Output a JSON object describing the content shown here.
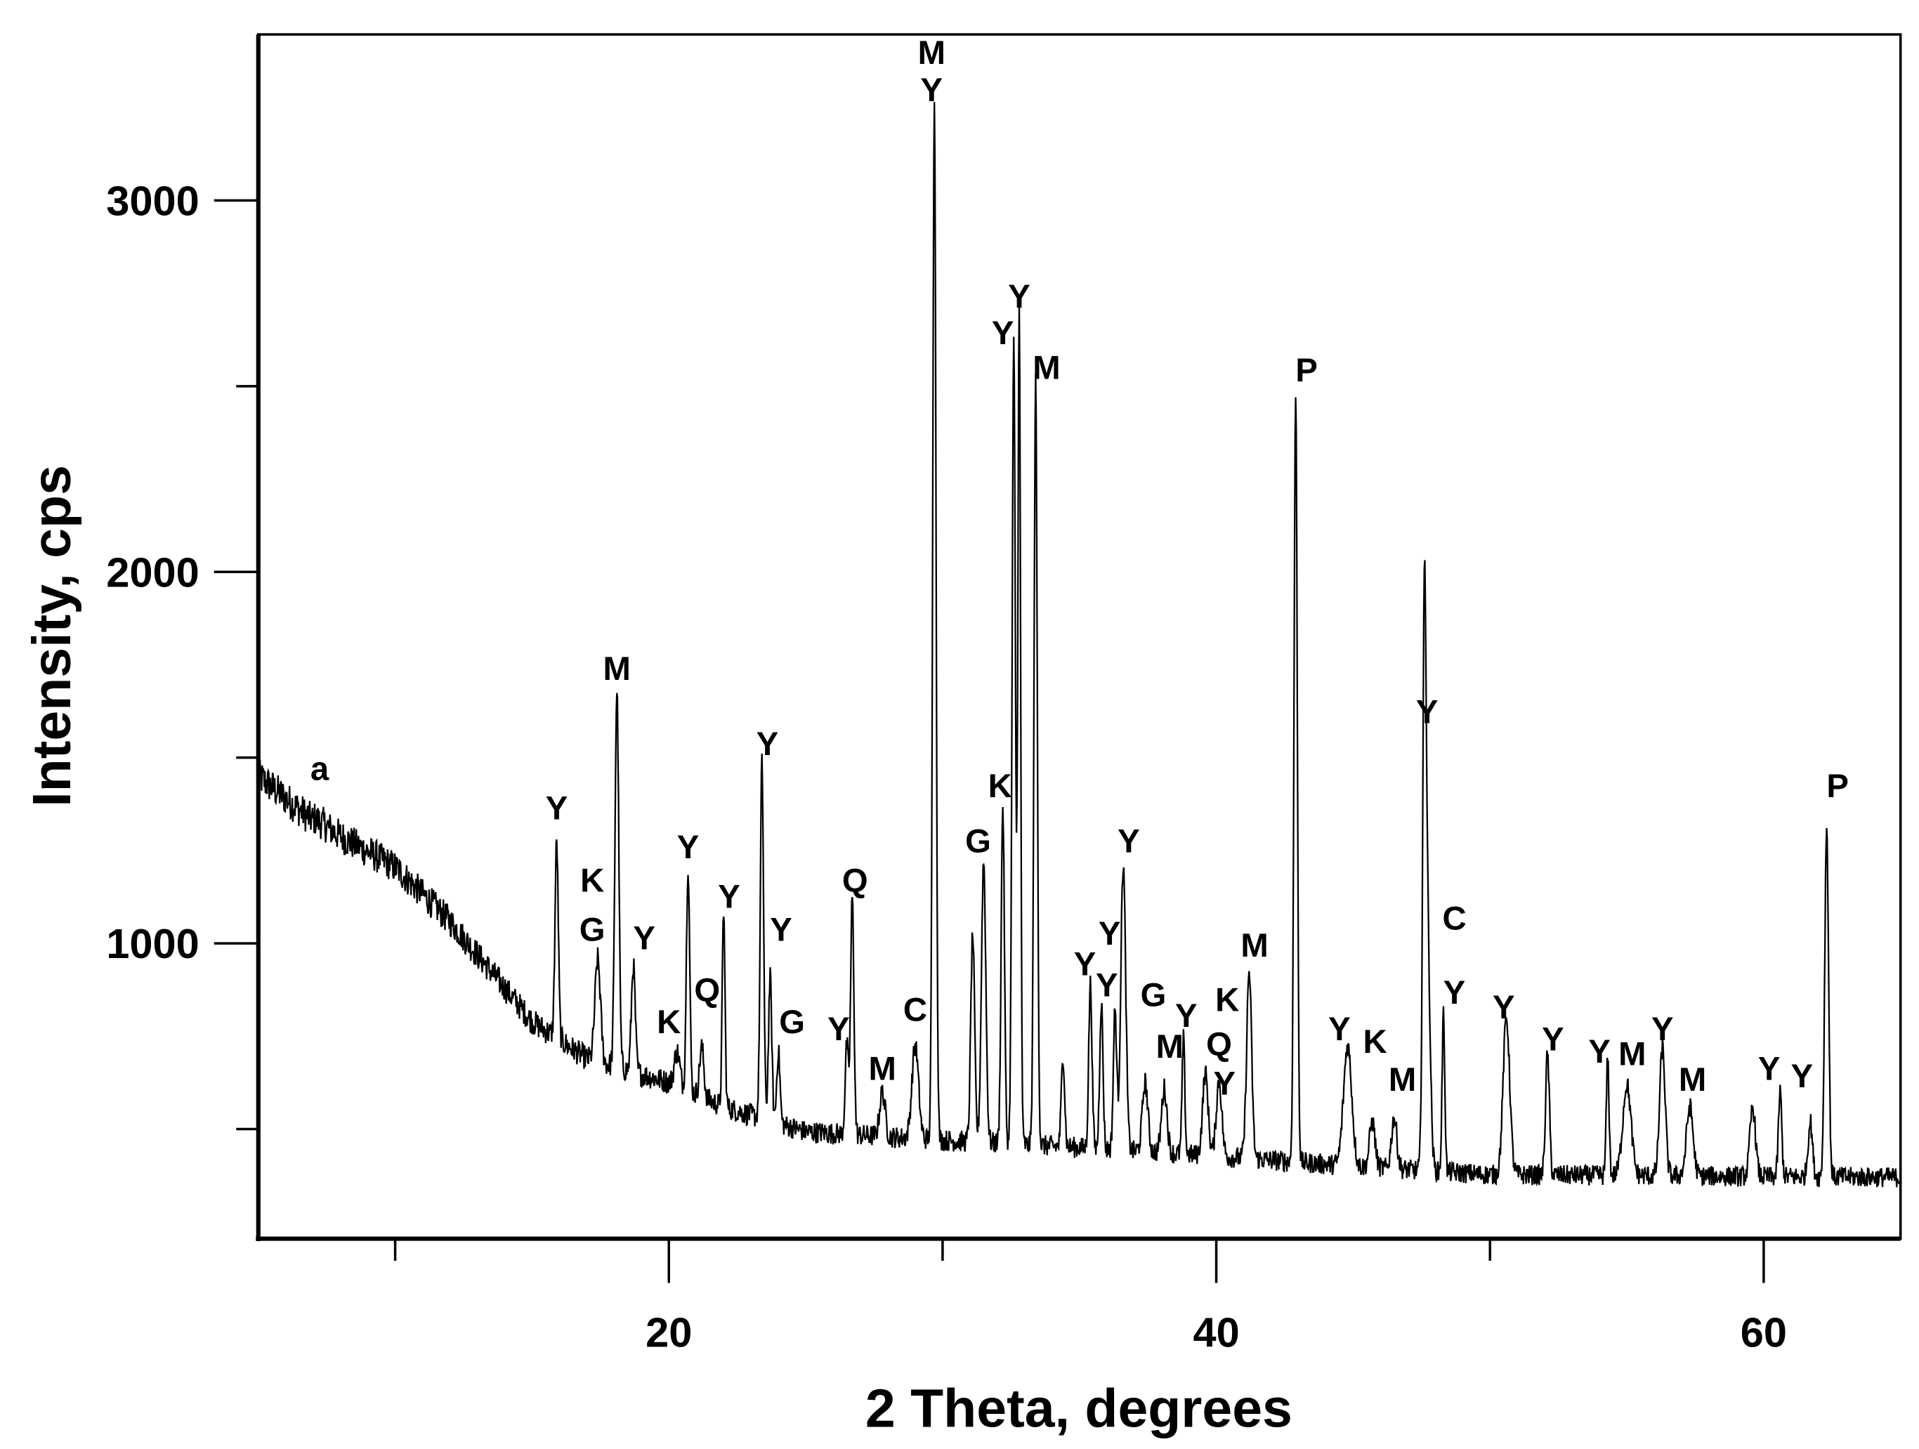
{
  "chart_data": {
    "type": "line",
    "xlabel": "2 Theta, degrees",
    "ylabel": "Intensity, cps",
    "xlim": [
      5,
      65
    ],
    "ylim": [
      205,
      3447
    ],
    "x_ticks_major": [
      20,
      40,
      60
    ],
    "x_ticks_minor": [
      10,
      30,
      50
    ],
    "y_ticks_major": [
      1000,
      2000,
      3000
    ],
    "y_ticks_minor": [
      500,
      1500,
      2500
    ],
    "grid": false,
    "line_color": "#000000",
    "background": [
      [
        5,
        1450
      ],
      [
        7,
        1330
      ],
      [
        10,
        1205
      ],
      [
        12,
        1060
      ],
      [
        15,
        790
      ],
      [
        17,
        690
      ],
      [
        20,
        626
      ],
      [
        22,
        560
      ],
      [
        25,
        493
      ],
      [
        30,
        470
      ],
      [
        35,
        450
      ],
      [
        40,
        427
      ],
      [
        45,
        400
      ],
      [
        50,
        377
      ],
      [
        55,
        375
      ],
      [
        60,
        372
      ],
      [
        65,
        370
      ]
    ],
    "peaks": [
      [
        7.2,
        1330,
        0.35
      ],
      [
        15.9,
        1272,
        0.06
      ],
      [
        17.4,
        957,
        0.1
      ],
      [
        18.1,
        1679,
        0.07
      ],
      [
        18.7,
        940,
        0.07
      ],
      [
        20.3,
        709,
        0.1
      ],
      [
        20.7,
        1212,
        0.06
      ],
      [
        21.2,
        720,
        0.08
      ],
      [
        22.0,
        1089,
        0.05
      ],
      [
        23.4,
        1487,
        0.06
      ],
      [
        23.7,
        907,
        0.06
      ],
      [
        24.0,
        709,
        0.06
      ],
      [
        26.5,
        725,
        0.06
      ],
      [
        26.7,
        1123,
        0.06
      ],
      [
        27.8,
        600,
        0.1
      ],
      [
        29.0,
        725,
        0.12
      ],
      [
        29.7,
        3291,
        0.06
      ],
      [
        31.1,
        1023,
        0.07
      ],
      [
        31.5,
        1222,
        0.08
      ],
      [
        32.2,
        1371,
        0.06
      ],
      [
        32.6,
        2613,
        0.06
      ],
      [
        32.8,
        2695,
        0.05
      ],
      [
        33.4,
        2507,
        0.06
      ],
      [
        34.4,
        700,
        0.06
      ],
      [
        35.4,
        891,
        0.06
      ],
      [
        35.8,
        841,
        0.06
      ],
      [
        36.3,
        820,
        0.06
      ],
      [
        36.6,
        1212,
        0.09
      ],
      [
        37.4,
        626,
        0.1
      ],
      [
        38.1,
        610,
        0.1
      ],
      [
        38.8,
        742,
        0.05
      ],
      [
        39.6,
        650,
        0.1
      ],
      [
        40.1,
        630,
        0.1
      ],
      [
        41.2,
        924,
        0.09
      ],
      [
        42.9,
        2480,
        0.06
      ],
      [
        44.8,
        725,
        0.15
      ],
      [
        45.7,
        520,
        0.1
      ],
      [
        46.5,
        530,
        0.1
      ],
      [
        47.6,
        1579,
        0.06
      ],
      [
        47.7,
        1089,
        0.1
      ],
      [
        48.3,
        808,
        0.05
      ],
      [
        50.6,
        800,
        0.12
      ],
      [
        52.1,
        700,
        0.07
      ],
      [
        54.3,
        690,
        0.05
      ],
      [
        55.0,
        620,
        0.15
      ],
      [
        56.3,
        720,
        0.1
      ],
      [
        57.3,
        560,
        0.12
      ],
      [
        59.6,
        560,
        0.1
      ],
      [
        60.6,
        600,
        0.06
      ],
      [
        61.7,
        520,
        0.08
      ],
      [
        62.3,
        1315,
        0.07
      ]
    ],
    "annotations": [
      {
        "text": "a",
        "x": 7.24,
        "y": 1473
      },
      {
        "text": "Y",
        "x": 15.9,
        "y": 1367
      },
      {
        "text": "K",
        "x": 17.2,
        "y": 1172
      },
      {
        "text": "G",
        "x": 17.2,
        "y": 1040
      },
      {
        "text": "M",
        "x": 18.1,
        "y": 1742
      },
      {
        "text": "Y",
        "x": 19.1,
        "y": 1017
      },
      {
        "text": "K",
        "x": 20.0,
        "y": 791
      },
      {
        "text": "Y",
        "x": 20.7,
        "y": 1262
      },
      {
        "text": "Q",
        "x": 21.4,
        "y": 877
      },
      {
        "text": "Y",
        "x": 22.2,
        "y": 1129
      },
      {
        "text": "Y",
        "x": 23.6,
        "y": 1540
      },
      {
        "text": "Y",
        "x": 24.1,
        "y": 1040
      },
      {
        "text": "G",
        "x": 24.5,
        "y": 791
      },
      {
        "text": "Y",
        "x": 26.2,
        "y": 772
      },
      {
        "text": "Q",
        "x": 26.8,
        "y": 1172
      },
      {
        "text": "M",
        "x": 27.8,
        "y": 666
      },
      {
        "text": "C",
        "x": 29.0,
        "y": 824
      },
      {
        "text": "M",
        "x": 29.6,
        "y": 3401
      },
      {
        "text": "Y",
        "x": 29.6,
        "y": 3301
      },
      {
        "text": "G",
        "x": 31.3,
        "y": 1278
      },
      {
        "text": "K",
        "x": 32.1,
        "y": 1427
      },
      {
        "text": "Y",
        "x": 32.2,
        "y": 2646
      },
      {
        "text": "Y",
        "x": 32.8,
        "y": 2745
      },
      {
        "text": "M",
        "x": 33.8,
        "y": 2553
      },
      {
        "text": "Y",
        "x": 35.2,
        "y": 947
      },
      {
        "text": "Y",
        "x": 36.1,
        "y": 1030
      },
      {
        "text": "Y",
        "x": 36.0,
        "y": 891
      },
      {
        "text": "Y",
        "x": 36.8,
        "y": 1278
      },
      {
        "text": "G",
        "x": 37.7,
        "y": 864
      },
      {
        "text": "M",
        "x": 38.3,
        "y": 725
      },
      {
        "text": "Y",
        "x": 38.9,
        "y": 808
      },
      {
        "text": "K",
        "x": 40.4,
        "y": 851
      },
      {
        "text": "Q",
        "x": 40.1,
        "y": 732
      },
      {
        "text": "Y",
        "x": 40.3,
        "y": 626
      },
      {
        "text": "M",
        "x": 41.4,
        "y": 997
      },
      {
        "text": "P",
        "x": 43.3,
        "y": 2546
      },
      {
        "text": "Y",
        "x": 44.5,
        "y": 772
      },
      {
        "text": "K",
        "x": 45.8,
        "y": 738
      },
      {
        "text": "M",
        "x": 46.8,
        "y": 636
      },
      {
        "text": "Y",
        "x": 47.7,
        "y": 1626
      },
      {
        "text": "C",
        "x": 48.7,
        "y": 1070
      },
      {
        "text": "Y",
        "x": 48.7,
        "y": 871
      },
      {
        "text": "Y",
        "x": 50.5,
        "y": 831
      },
      {
        "text": "Y",
        "x": 52.3,
        "y": 745
      },
      {
        "text": "Y",
        "x": 54.0,
        "y": 712
      },
      {
        "text": "M",
        "x": 55.2,
        "y": 705
      },
      {
        "text": "Y",
        "x": 56.3,
        "y": 772
      },
      {
        "text": "M",
        "x": 57.4,
        "y": 636
      },
      {
        "text": "Y",
        "x": 60.2,
        "y": 666
      },
      {
        "text": "Y",
        "x": 61.4,
        "y": 646
      },
      {
        "text": "P",
        "x": 62.7,
        "y": 1427
      }
    ]
  }
}
